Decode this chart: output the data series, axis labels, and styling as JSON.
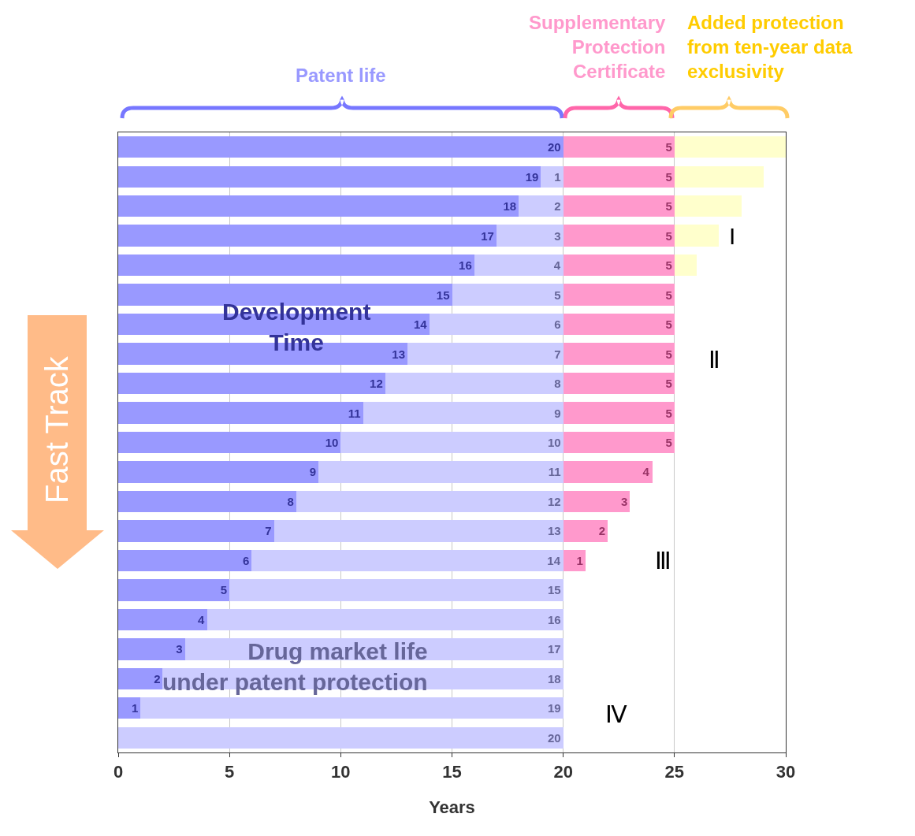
{
  "chart_data": {
    "type": "bar",
    "orientation": "horizontal",
    "stacked": true,
    "xlabel": "Years",
    "categories": [
      null,
      null,
      null,
      null,
      null,
      null,
      null,
      null,
      null,
      null,
      null,
      null,
      null,
      null,
      null,
      null,
      null,
      null,
      null,
      null,
      null
    ],
    "series": [
      {
        "color": "#9999ff",
        "values": [
          20,
          19,
          18,
          17,
          16,
          15,
          14,
          13,
          12,
          11,
          10,
          9,
          8,
          7,
          6,
          5,
          4,
          3,
          2,
          1,
          0
        ],
        "value_labels": [
          "20",
          "19",
          "18",
          "17",
          "16",
          "15",
          "14",
          "13",
          "12",
          "11",
          "10",
          "9",
          "8",
          "7",
          "6",
          "5",
          "4",
          "3",
          "2",
          "1",
          null
        ]
      },
      {
        "color": "#ccccff",
        "values": [
          0,
          1,
          2,
          3,
          4,
          5,
          6,
          7,
          8,
          9,
          10,
          11,
          12,
          13,
          14,
          15,
          16,
          17,
          18,
          19,
          20
        ],
        "value_labels": [
          null,
          "1",
          "2",
          "3",
          "4",
          "5",
          "6",
          "7",
          "8",
          "9",
          "10",
          "11",
          "12",
          "13",
          "14",
          "15",
          "16",
          "17",
          "18",
          "19",
          "20"
        ]
      },
      {
        "color": "#ff99cc",
        "values": [
          5,
          5,
          5,
          5,
          5,
          5,
          5,
          5,
          5,
          5,
          5,
          4,
          3,
          2,
          1,
          0,
          0,
          0,
          0,
          0,
          0
        ],
        "value_labels": [
          "5",
          "5",
          "5",
          "5",
          "5",
          "5",
          "5",
          "5",
          "5",
          "5",
          "5",
          "4",
          "3",
          "2",
          "1",
          null,
          null,
          null,
          null,
          null,
          null
        ]
      },
      {
        "color": "#ffffcc",
        "values": [
          5,
          4,
          3,
          2,
          1,
          0,
          0,
          0,
          0,
          0,
          0,
          0,
          0,
          0,
          0,
          0,
          0,
          0,
          0,
          0,
          0
        ]
      }
    ],
    "xlim": [
      0,
      30
    ],
    "xticks": [
      0,
      5,
      10,
      15,
      20,
      25,
      30
    ],
    "grid": "x",
    "tick_labels": "x",
    "annotations": [
      "Patent life",
      "Supplementary\nProtection\nCertificate",
      "Added protection\nfrom ten-year data\nexclusivity",
      "Development\nTime",
      "Drug market life\nunder patent protection",
      "Fast Track",
      "I",
      "Ⅱ",
      "Ⅲ",
      "Ⅳ"
    ]
  }
}
